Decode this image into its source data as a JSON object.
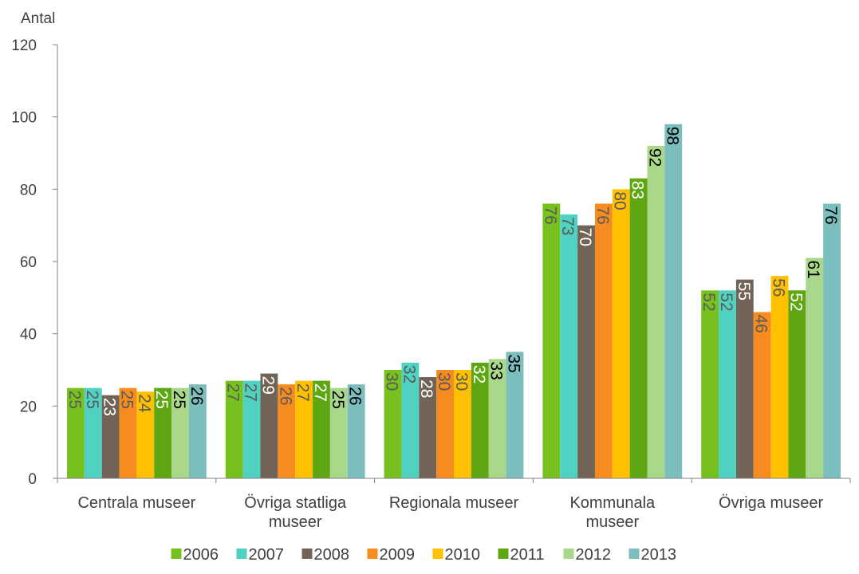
{
  "chart_data": {
    "type": "bar",
    "ylabel": "Antal",
    "ylim": [
      0,
      120
    ],
    "yticks": [
      0,
      20,
      40,
      60,
      80,
      100,
      120
    ],
    "categories": [
      [
        "Centrala museer"
      ],
      [
        "Övriga statliga",
        "museer"
      ],
      [
        "Regionala museer"
      ],
      [
        "Kommunala",
        "museer"
      ],
      [
        "Övriga museer"
      ]
    ],
    "series": [
      {
        "name": "2006",
        "color": "#77C11E",
        "label_color": "#5a5a5a",
        "values": [
          25,
          27,
          30,
          76,
          52
        ]
      },
      {
        "name": "2007",
        "color": "#4FD2C2",
        "label_color": "#5a5a5a",
        "values": [
          25,
          27,
          32,
          73,
          52
        ]
      },
      {
        "name": "2008",
        "color": "#716456",
        "label_color": "#ffffff",
        "values": [
          23,
          29,
          28,
          70,
          55
        ]
      },
      {
        "name": "2009",
        "color": "#F68B1F",
        "label_color": "#5a5a5a",
        "values": [
          25,
          26,
          30,
          76,
          46
        ]
      },
      {
        "name": "2010",
        "color": "#FFC000",
        "label_color": "#5a5a5a",
        "values": [
          24,
          27,
          30,
          80,
          56
        ]
      },
      {
        "name": "2011",
        "color": "#5FA613",
        "label_color": "#ffffff",
        "values": [
          25,
          27,
          32,
          83,
          52
        ]
      },
      {
        "name": "2012",
        "color": "#A9D88A",
        "label_color": "#000000",
        "values": [
          25,
          25,
          33,
          92,
          61
        ]
      },
      {
        "name": "2013",
        "color": "#7CBDBE",
        "label_color": "#000000",
        "values": [
          26,
          26,
          35,
          98,
          76
        ]
      }
    ],
    "legend_position": "bottom",
    "grid": false
  }
}
